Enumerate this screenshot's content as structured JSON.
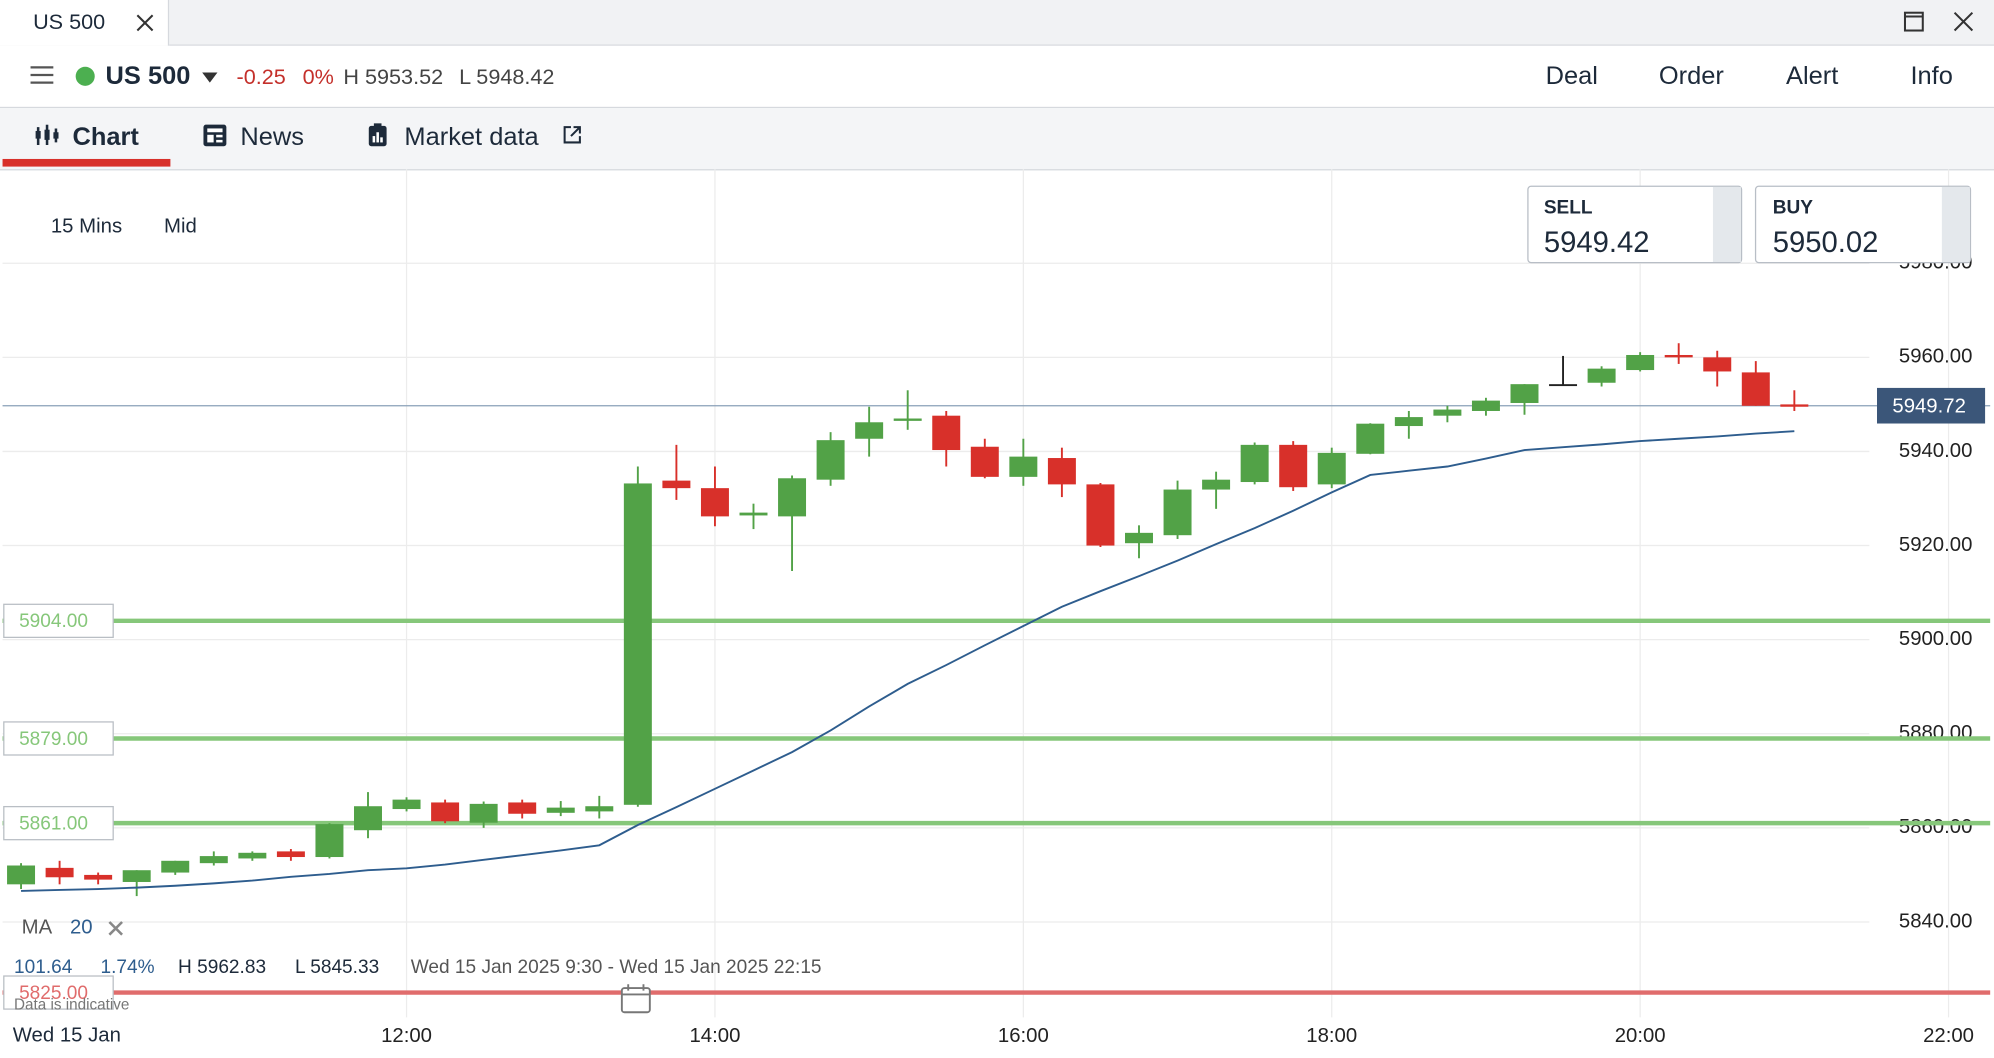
{
  "window": {
    "tab_title": "US 500"
  },
  "instrument": {
    "name": "US 500",
    "change": "-0.25",
    "change_pct": "0%",
    "high": "H 5953.52",
    "low": "L 5948.42"
  },
  "actions": [
    "Deal",
    "Order",
    "Alert",
    "Info"
  ],
  "tabs": [
    "Chart",
    "News",
    "Market data"
  ],
  "chart_settings": {
    "interval": "15 Mins",
    "price_type": "Mid"
  },
  "quote": {
    "sell_label": "SELL",
    "sell": "5949.42",
    "buy_label": "BUY",
    "buy": "5950.02"
  },
  "stats": {
    "ma_label": "MA",
    "ma_period": "20",
    "change": "101.64",
    "change_pct": "1.74%",
    "high": "H 5962.83",
    "low": "L 5845.33",
    "range": "Wed 15 Jan 2025 9:30 - Wed 15 Jan 2025 22:15"
  },
  "notice": "Data is indicative",
  "chart_data": {
    "type": "candlestick",
    "x_start_label": "Wed 15 Jan",
    "x": [
      9.5,
      9.75,
      10,
      10.25,
      10.5,
      10.75,
      11,
      11.25,
      11.5,
      11.75,
      12,
      12.25,
      12.5,
      12.75,
      13,
      13.25,
      13.5,
      13.75,
      14,
      14.25,
      14.5,
      14.75,
      15,
      15.25,
      15.5,
      15.75,
      16,
      16.25,
      16.5,
      16.75,
      17,
      17.25,
      17.5,
      17.75,
      18,
      18.25,
      18.5,
      18.75,
      19,
      19.25,
      19.5,
      19.75,
      20,
      20.25,
      20.5,
      20.75,
      21
    ],
    "open": [
      5848,
      5851.5,
      5850,
      5848.5,
      5850.5,
      5852.5,
      5853.5,
      5855,
      5853.8,
      5859.5,
      5864,
      5865.4,
      5861.1,
      5865.4,
      5863.2,
      5863.5,
      5864.9,
      5933.8,
      5932.2,
      5926.4,
      5926.2,
      5934,
      5942.7,
      5946.5,
      5947.6,
      5941,
      5934.6,
      5938.6,
      5933,
      5920.5,
      5922.2,
      5931.9,
      5933.5,
      5941.4,
      5933,
      5939.5,
      5945.4,
      5947.6,
      5948.6,
      5950.3,
      5954.3,
      5954.6,
      5957.3,
      5960.5,
      5960,
      5956.8,
      5950
    ],
    "high": [
      5852.5,
      5853,
      5850.5,
      5851,
      5853,
      5855,
      5855,
      5855.5,
      5861,
      5867.6,
      5866.5,
      5866,
      5865.6,
      5866,
      5865.7,
      5866.8,
      5936.8,
      5941.4,
      5936.8,
      5928.9,
      5934.9,
      5944.1,
      5949.5,
      5953,
      5948.6,
      5942.7,
      5942.7,
      5940.8,
      5933.3,
      5924.3,
      5933.8,
      5935.7,
      5941.9,
      5942.2,
      5940.8,
      5946,
      5948.6,
      5949.7,
      5951.4,
      5954.3,
      5960.3,
      5958.1,
      5961.1,
      5963,
      5961.4,
      5959.2,
      5953
    ],
    "low": [
      5847,
      5848,
      5848,
      5845.5,
      5850,
      5852,
      5853,
      5853,
      5853.5,
      5857.8,
      5863.5,
      5861,
      5860,
      5862,
      5862.5,
      5862,
      5864.5,
      5929.7,
      5924.1,
      5923.5,
      5914.6,
      5932.7,
      5938.9,
      5944.6,
      5936.8,
      5934.3,
      5932.7,
      5930.3,
      5919.7,
      5917.3,
      5921.4,
      5927.8,
      5933,
      5931.6,
      5932.2,
      5939.4,
      5942.7,
      5946.2,
      5947.6,
      5947.8,
      5954,
      5953.8,
      5957,
      5958.6,
      5953.8,
      5949.7,
      5948.6
    ],
    "close": [
      5852,
      5849.5,
      5849,
      5851,
      5853,
      5854,
      5854.7,
      5853.8,
      5860.8,
      5864.6,
      5866,
      5861.4,
      5865.1,
      5863,
      5864.3,
      5864.6,
      5933.2,
      5932.2,
      5926.2,
      5927,
      5934.3,
      5942.4,
      5946.2,
      5947,
      5940.3,
      5934.6,
      5938.9,
      5933,
      5920,
      5922.7,
      5931.9,
      5934,
      5941.4,
      5932.4,
      5939.7,
      5945.9,
      5947.3,
      5948.9,
      5950.8,
      5954.3,
      5954.3,
      5957.6,
      5960.5,
      5960,
      5957,
      5949.7,
      5949.5
    ],
    "ma": [
      5846.6,
      5846.8,
      5847,
      5847.3,
      5847.7,
      5848.2,
      5848.8,
      5849.6,
      5850.2,
      5851,
      5851.4,
      5852.2,
      5853.2,
      5854.2,
      5855.2,
      5856.3,
      5860.6,
      5864.4,
      5868.3,
      5872.2,
      5876.1,
      5880.7,
      5885.8,
      5890.6,
      5894.6,
      5898.8,
      5902.9,
      5907,
      5910.3,
      5913.5,
      5916.8,
      5920.3,
      5923.7,
      5927.4,
      5931.3,
      5935,
      5935.9,
      5936.8,
      5938.5,
      5940.3,
      5940.9,
      5941.5,
      5942.2,
      5942.7,
      5943.2,
      5943.8,
      5944.3
    ],
    "colors": {
      "up": "#52a247",
      "down": "#d8302a",
      "flat": "#222222",
      "ma": "#2e5d8e"
    },
    "levels": [
      {
        "value": 5904,
        "label": "5904.00",
        "color": "#86c77a"
      },
      {
        "value": 5879,
        "label": "5879.00",
        "color": "#86c77a"
      },
      {
        "value": 5861,
        "label": "5861.00",
        "color": "#86c77a"
      },
      {
        "value": 5825,
        "label": "5825.00",
        "color": "#e06c6c"
      }
    ],
    "current_price": 5949.72,
    "xlim": [
      9.38,
      22.27
    ],
    "ylim": [
      5820,
      6000
    ],
    "xticks": [
      {
        "value": 12,
        "label": "12:00"
      },
      {
        "value": 14,
        "label": "14:00"
      },
      {
        "value": 16,
        "label": "16:00"
      },
      {
        "value": 18,
        "label": "18:00"
      },
      {
        "value": 20,
        "label": "20:00"
      },
      {
        "value": 22,
        "label": "22:00"
      }
    ],
    "yticks": [
      {
        "value": 5840,
        "label": "5840.00"
      },
      {
        "value": 5860,
        "label": "5860.00"
      },
      {
        "value": 5880,
        "label": "5880.00"
      },
      {
        "value": 5900,
        "label": "5900.00"
      },
      {
        "value": 5920,
        "label": "5920.00"
      },
      {
        "value": 5940,
        "label": "5940.00"
      },
      {
        "value": 5960,
        "label": "5960.00"
      },
      {
        "value": 5980,
        "label": "5980.00"
      }
    ],
    "grid": true
  }
}
